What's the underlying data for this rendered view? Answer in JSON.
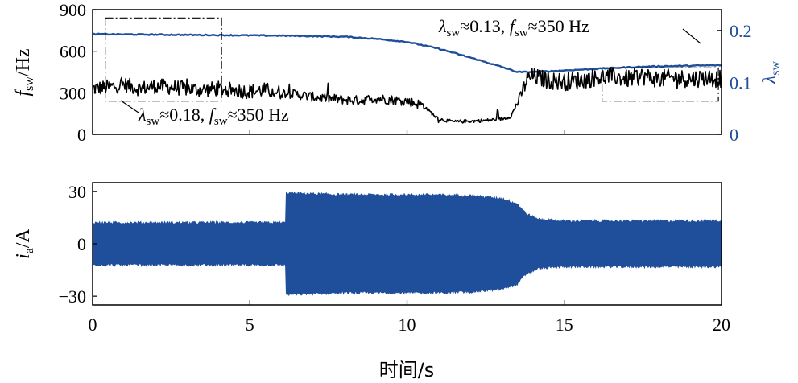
{
  "chart_data": [
    {
      "type": "line",
      "panel": "top",
      "xlim": [
        0,
        20
      ],
      "ylim_left": [
        0,
        900
      ],
      "ylim_right": [
        0,
        0.24
      ],
      "yticks_left": [
        "0",
        "300",
        "600",
        "900"
      ],
      "yticks_right": [
        "0",
        "0.1",
        "0.2"
      ],
      "ylabel_left_main": "f",
      "ylabel_left_sub": "sw",
      "ylabel_left_unit": "/Hz",
      "ylabel_right_main": "λ",
      "ylabel_right_sub": "sw",
      "colors": {
        "fsw": "#000000",
        "lambda": "#1f4e9a"
      },
      "series": [
        {
          "axis": "left",
          "x": [
            0,
            0.5,
            1,
            1.5,
            2,
            2.5,
            3,
            3.5,
            4,
            4.5,
            5,
            5.5,
            6,
            6.5,
            7,
            7.5,
            8,
            8.5,
            9,
            9.5,
            10,
            10.5,
            11,
            11.5,
            12,
            12.5,
            13,
            13.3,
            13.6,
            13.8,
            14,
            14.5,
            15,
            15.5,
            16,
            16.5,
            17,
            17.5,
            18,
            18.5,
            19,
            19.5,
            20
          ],
          "values": [
            330,
            340,
            360,
            330,
            350,
            340,
            330,
            320,
            330,
            320,
            310,
            320,
            300,
            290,
            270,
            260,
            250,
            245,
            260,
            250,
            240,
            210,
            110,
            90,
            95,
            100,
            110,
            130,
            270,
            390,
            420,
            390,
            380,
            390,
            410,
            420,
            400,
            420,
            400,
            410,
            400,
            410,
            400
          ]
        },
        {
          "axis": "right",
          "x": [
            0,
            2,
            4,
            6,
            8,
            9,
            10,
            11,
            12,
            13,
            13.5,
            14,
            15,
            16,
            17,
            18,
            19,
            20
          ],
          "values": [
            0.193,
            0.192,
            0.191,
            0.19,
            0.188,
            0.184,
            0.178,
            0.165,
            0.148,
            0.13,
            0.12,
            0.12,
            0.123,
            0.126,
            0.129,
            0.131,
            0.132,
            0.133
          ]
        }
      ],
      "annotations": [
        {
          "lambda_main": "λ",
          "lambda_sub": "sw",
          "text1": "≈0.18, ",
          "f_main": "f",
          "f_sub": "sw",
          "text2": "≈350 Hz",
          "box_x": [
            0.4,
            4.1
          ],
          "box_y": [
            240,
            840
          ]
        },
        {
          "lambda_main": "λ",
          "lambda_sub": "sw",
          "text1": "≈0.13, ",
          "f_main": "f",
          "f_sub": "sw",
          "text2": "≈350 Hz",
          "box_x": [
            16.2,
            19.9
          ],
          "box_y": [
            240,
            480
          ]
        }
      ]
    },
    {
      "type": "area",
      "panel": "bottom",
      "xlim": [
        0,
        20
      ],
      "ylim": [
        -35,
        35
      ],
      "xticks": [
        "0",
        "5",
        "10",
        "15",
        "20"
      ],
      "yticks": [
        "−30",
        "0",
        "30"
      ],
      "ylabel_main": "i",
      "ylabel_sub": "a",
      "ylabel_unit": "/A",
      "xlabel": "时间/s",
      "color": "#1f4e9a",
      "envelope_x": [
        0,
        6.15,
        6.16,
        8,
        10,
        11,
        12,
        13,
        13.5,
        13.8,
        14.2,
        15,
        17,
        20
      ],
      "envelope_upper": [
        12,
        12,
        29,
        28,
        28,
        28,
        27.5,
        26,
        23,
        17,
        14,
        13,
        13,
        13
      ],
      "envelope_lower": [
        -12,
        -12,
        -29,
        -28,
        -28,
        -28,
        -27.5,
        -26,
        -23,
        -17,
        -14,
        -13,
        -13,
        -13
      ]
    }
  ]
}
